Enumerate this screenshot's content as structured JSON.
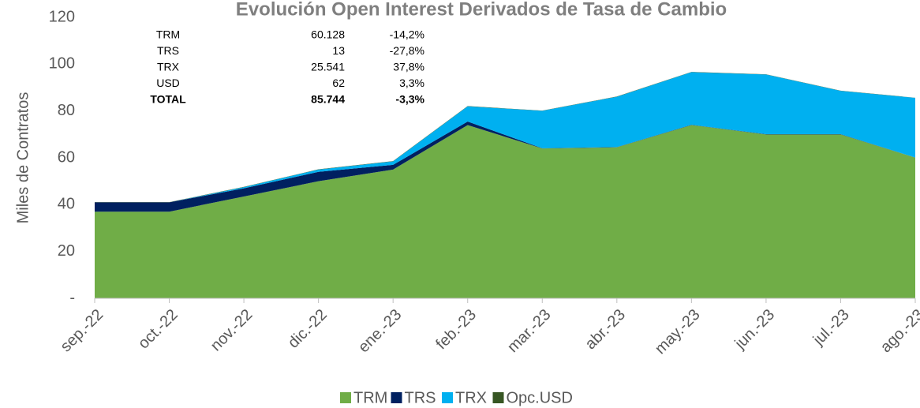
{
  "chart_data": {
    "type": "stacked_area",
    "title": "Evolución Open Interest Derivados de Tasa de Cambio",
    "y_label": "Miles de Contratos",
    "categories": [
      "sep.-22",
      "oct.-22",
      "nov.-22",
      "dic.-22",
      "ene.-23",
      "feb.-23",
      "mar.-23",
      "abr.-23",
      "may.-23",
      "jun.-23",
      "jul.-23",
      "ago.-23"
    ],
    "series": [
      {
        "name": "TRM",
        "color": "#70ad47",
        "values": [
          37,
          37,
          43.5,
          50,
          55,
          74,
          64,
          64.5,
          74,
          70,
          70,
          60.1
        ]
      },
      {
        "name": "TRS",
        "color": "#002060",
        "values": [
          4,
          4,
          3.5,
          4,
          2,
          1.5,
          0.1,
          0.1,
          0.1,
          0.1,
          0.1,
          0.013
        ]
      },
      {
        "name": "TRX",
        "color": "#00b0f0",
        "values": [
          0,
          0,
          0.5,
          1,
          1.5,
          6.5,
          16,
          21.5,
          22.5,
          25.5,
          18.5,
          25.5
        ]
      },
      {
        "name": "Opc.USD",
        "color": "#375623",
        "values": [
          0.1,
          0.1,
          0.1,
          0.1,
          0.1,
          0.1,
          0.1,
          0.1,
          0.1,
          0.1,
          0.1,
          0.062
        ]
      }
    ],
    "ylim": [
      0,
      120
    ],
    "yticks": [
      {
        "value": 0,
        "label": "-"
      },
      20,
      40,
      60,
      80,
      100,
      120
    ],
    "summary_table": [
      [
        "TRM",
        "60.128",
        "-14,2%"
      ],
      [
        "TRS",
        "13",
        "-27,8%"
      ],
      [
        "TRX",
        "25.541",
        "37,8%"
      ],
      [
        "USD",
        "62",
        "3,3%"
      ],
      [
        "TOTAL",
        "85.744",
        "-3,3%"
      ]
    ],
    "legend": "bottom"
  }
}
